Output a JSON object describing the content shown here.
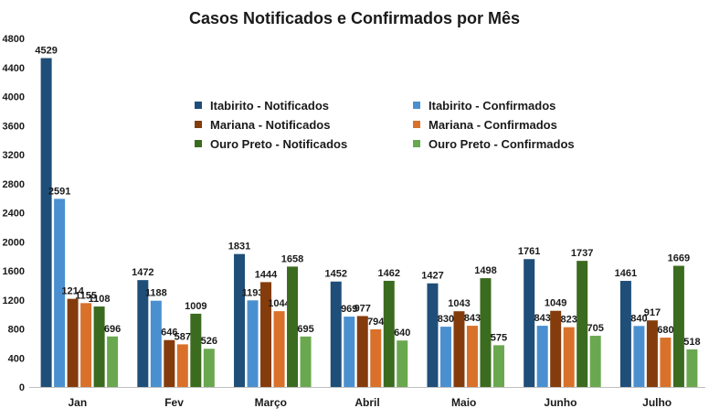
{
  "chart_data": {
    "type": "bar",
    "title": "Casos Notificados e Confirmados por Mês",
    "xlabel": "",
    "ylabel": "",
    "ylim": [
      0,
      4800
    ],
    "yticks": [
      0,
      400,
      800,
      1200,
      1600,
      2000,
      2400,
      2800,
      3200,
      3600,
      4000,
      4400,
      4800
    ],
    "grid": false,
    "legend_position": "center",
    "categories": [
      "Jan",
      "Fev",
      "Março",
      "Abril",
      "Maio",
      "Junho",
      "Julho"
    ],
    "series": [
      {
        "name": "Itabirito - Notificados",
        "color": "#1f4e79",
        "values": [
          4529,
          1472,
          1831,
          1452,
          1427,
          1761,
          1461
        ]
      },
      {
        "name": "Itabirito - Confirmados",
        "color": "#4a90d0",
        "values": [
          2591,
          1188,
          1193,
          969,
          830,
          843,
          840
        ]
      },
      {
        "name": "Mariana - Notificados",
        "color": "#843c0c",
        "values": [
          1214,
          646,
          1444,
          977,
          1043,
          1049,
          917
        ]
      },
      {
        "name": "Mariana - Confirmados",
        "color": "#d9712a",
        "values": [
          1155,
          587,
          1044,
          794,
          843,
          823,
          680
        ]
      },
      {
        "name": "Ouro Preto - Notificados",
        "color": "#3b6b1f",
        "values": [
          1108,
          1009,
          1658,
          1462,
          1498,
          1737,
          1669
        ]
      },
      {
        "name": "Ouro Preto - Confirmados",
        "color": "#6aa84f",
        "values": [
          696,
          526,
          695,
          640,
          575,
          705,
          518
        ]
      }
    ]
  }
}
